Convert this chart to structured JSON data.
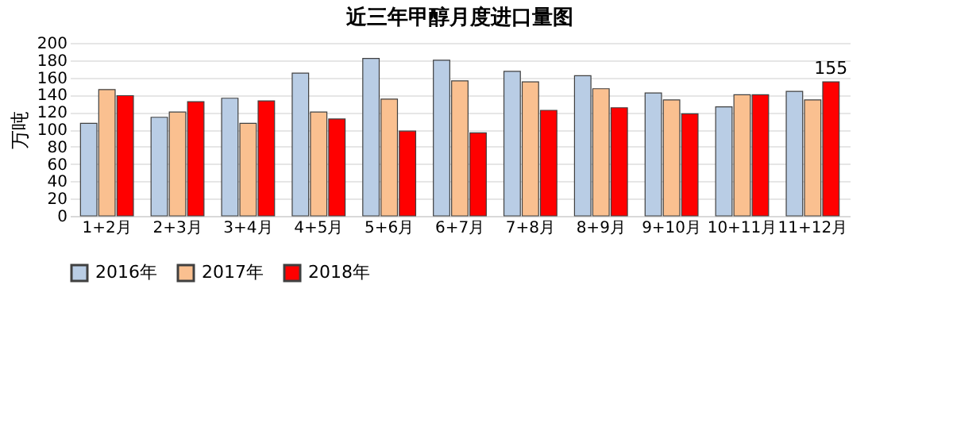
{
  "chart_data": {
    "type": "bar",
    "title": "近三年甲醇月度进口量图",
    "ylabel": "万吨",
    "categories": [
      "1+2月",
      "2+3月",
      "3+4月",
      "4+5月",
      "5+6月",
      "6+7月",
      "7+8月",
      "8+9月",
      "9+10月",
      "10+11月",
      "11+12月"
    ],
    "series": [
      {
        "name": "2016年",
        "color": "#b9cde5",
        "values": [
          107,
          114,
          136,
          165,
          182,
          180,
          167,
          162,
          142,
          126,
          144
        ]
      },
      {
        "name": "2017年",
        "color": "#fac090",
        "values": [
          146,
          120,
          107,
          120,
          135,
          156,
          155,
          147,
          134,
          140,
          134
        ]
      },
      {
        "name": "2018年",
        "color": "#ff0000",
        "values": [
          139,
          132,
          133,
          112,
          98,
          96,
          122,
          125,
          118,
          140,
          155
        ],
        "value_labels": [
          null,
          null,
          null,
          null,
          null,
          null,
          null,
          null,
          null,
          null,
          "155"
        ]
      }
    ],
    "ylim": [
      0,
      200
    ],
    "yticks": [
      0,
      20,
      40,
      60,
      80,
      100,
      120,
      140,
      160,
      180,
      200
    ],
    "grid": "y",
    "legend": "bottom"
  }
}
